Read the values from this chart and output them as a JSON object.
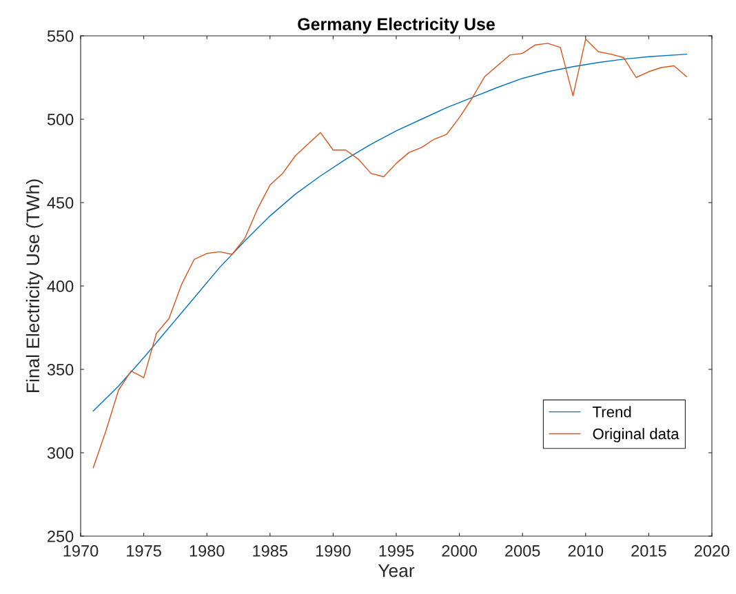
{
  "chart_data": {
    "type": "line",
    "title": "Germany Electricity Use",
    "xlabel": "Year",
    "ylabel": "Final Electricity Use (TWh)",
    "xlim": [
      1970,
      2020
    ],
    "xticks": [
      1970,
      1975,
      1980,
      1985,
      1990,
      1995,
      2000,
      2005,
      2010,
      2015,
      2020
    ],
    "ylim": [
      250,
      550
    ],
    "yticks": [
      250,
      300,
      350,
      400,
      450,
      500,
      550
    ],
    "grid": false,
    "legend": "bottom right",
    "series": [
      {
        "name": "Trend",
        "color": "#0072bd",
        "x": [
          1971,
          1973,
          1975,
          1977,
          1979,
          1981,
          1983,
          1985,
          1987,
          1989,
          1991,
          1993,
          1995,
          1997,
          1999,
          2001,
          2003,
          2005,
          2007,
          2009,
          2011,
          2013,
          2015,
          2018
        ],
        "values": [
          325,
          340,
          357,
          375,
          393,
          411,
          427,
          442,
          455,
          466,
          476,
          485,
          493,
          500,
          507,
          513,
          519,
          524.5,
          528.5,
          531.5,
          534,
          536,
          537.5,
          539
        ]
      },
      {
        "name": "Original data",
        "color": "#d95319",
        "x": [
          1971,
          1972,
          1973,
          1974,
          1975,
          1976,
          1977,
          1978,
          1979,
          1980,
          1981,
          1982,
          1983,
          1984,
          1985,
          1986,
          1987,
          1988,
          1989,
          1990,
          1991,
          1992,
          1993,
          1994,
          1995,
          1996,
          1997,
          1998,
          1999,
          2000,
          2001,
          2002,
          2003,
          2004,
          2005,
          2006,
          2007,
          2008,
          2009,
          2010,
          2011,
          2012,
          2013,
          2014,
          2015,
          2016,
          2017,
          2018
        ],
        "values": [
          291,
          313,
          337.5,
          349,
          345,
          371.5,
          380.5,
          401,
          416,
          419.5,
          420.5,
          419,
          428.5,
          446,
          460.5,
          467.5,
          478,
          485,
          492,
          481.5,
          481.5,
          476,
          467.5,
          465.5,
          473.5,
          480,
          483,
          488,
          491,
          501,
          512.5,
          525.5,
          532,
          538.5,
          539.5,
          544.5,
          545.5,
          543,
          514,
          548,
          540.5,
          539,
          537,
          525,
          528.5,
          531,
          532,
          525.5
        ]
      }
    ]
  }
}
